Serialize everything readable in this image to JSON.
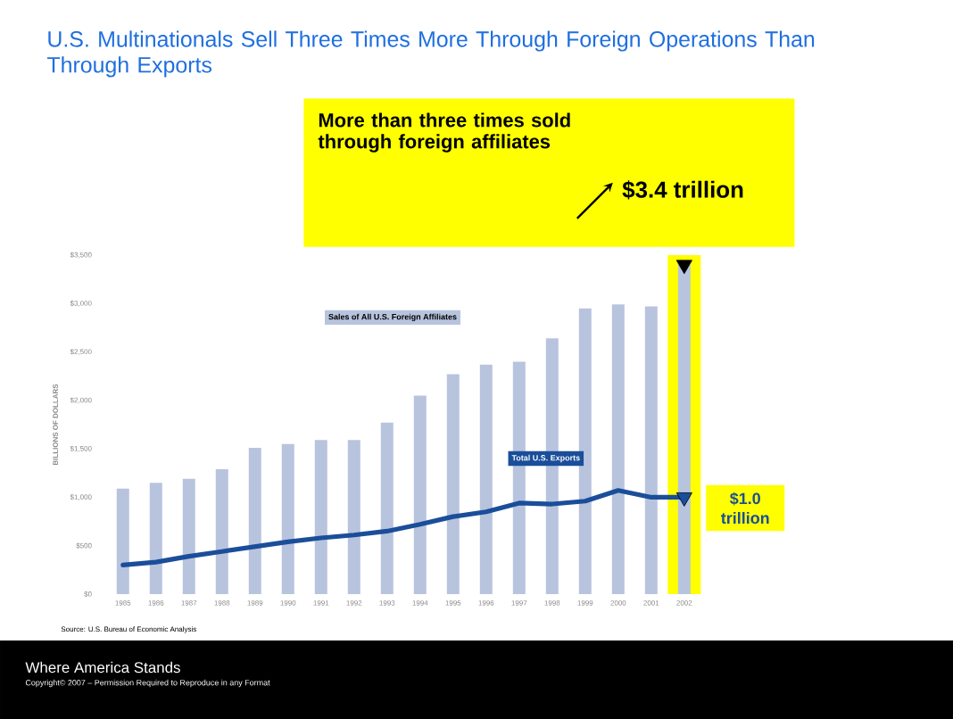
{
  "chart_data": {
    "type": "bar",
    "title": "U.S. Multinationals Sell Three Times More Through Foreign Operations Than Through Exports",
    "ylabel": "BILLIONS OF DOLLARS",
    "categories": [
      "1985",
      "1986",
      "1987",
      "1988",
      "1989",
      "1990",
      "1991",
      "1992",
      "1993",
      "1994",
      "1995",
      "1996",
      "1997",
      "1998",
      "1999",
      "2000",
      "2001",
      "2002"
    ],
    "series": [
      {
        "name": "Sales of All U.S. Foreign Affiliates",
        "type": "bar",
        "color": "#b8c4de",
        "values": [
          1090,
          1150,
          1190,
          1290,
          1510,
          1550,
          1590,
          1590,
          1770,
          2050,
          2270,
          2370,
          2400,
          2640,
          2950,
          2990,
          2970,
          3400
        ]
      },
      {
        "name": "Total U.S. Exports",
        "type": "line",
        "color": "#1a4e9a",
        "values": [
          300,
          330,
          390,
          440,
          490,
          540,
          580,
          610,
          650,
          720,
          800,
          850,
          940,
          930,
          960,
          1070,
          1000,
          1000
        ]
      },
      {
        "type": "scatter",
        "marker": "triangle",
        "color": "#000000",
        "values": [
          null,
          null,
          null,
          null,
          null,
          null,
          null,
          null,
          null,
          null,
          null,
          null,
          null,
          null,
          null,
          null,
          null,
          3400
        ]
      },
      {
        "type": "scatter",
        "marker": "triangle",
        "color": "#1a4e9a",
        "values": [
          null,
          null,
          null,
          null,
          null,
          null,
          null,
          null,
          null,
          null,
          null,
          null,
          null,
          null,
          null,
          null,
          null,
          1000
        ]
      }
    ],
    "bands": [
      {
        "axis": "x",
        "from": "2002",
        "to": "2002",
        "color": "#ffff00"
      }
    ],
    "ylim": [
      0,
      3500
    ],
    "yticks": [
      {
        "value": 0,
        "label": "$0"
      },
      {
        "value": 500,
        "label": "$500"
      },
      {
        "value": 1000,
        "label": "$1,000"
      },
      {
        "value": 1500,
        "label": "$1,500"
      },
      {
        "value": 2000,
        "label": "$2,000"
      },
      {
        "value": 2500,
        "label": "$2,500"
      },
      {
        "value": 3000,
        "label": "$3,000"
      },
      {
        "value": 3500,
        "label": "$3,500"
      }
    ],
    "annotations": [
      "More than three times sold through foreign affiliates",
      {
        "text": "$3.4 trillion",
        "x": "2002",
        "y": 3400
      },
      {
        "text": "$1.0 trillion",
        "x": "2002",
        "y": 1000
      },
      "Source: U.S. Bureau of Economic Analysis",
      "Where America Stands",
      "Copyright© 2007 – Permission Required to Reproduce in any Format"
    ]
  }
}
